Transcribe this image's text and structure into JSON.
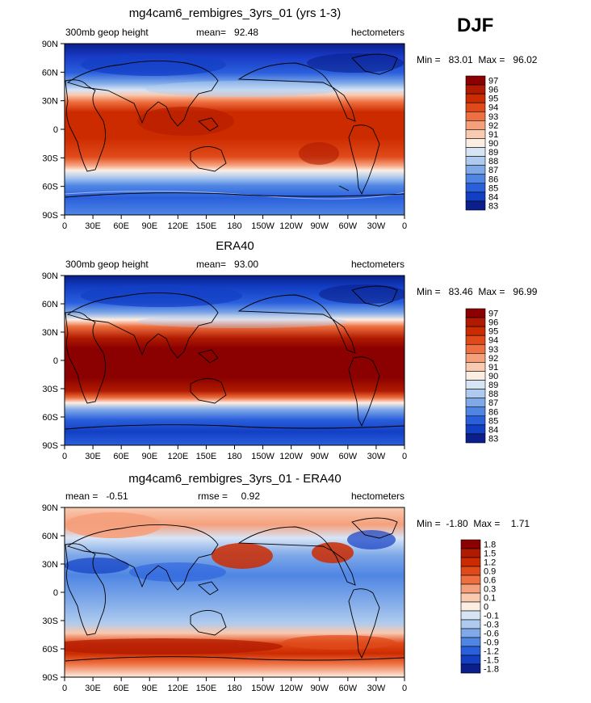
{
  "season_label": "DJF",
  "colors": {
    "continents": "#000000",
    "frame": "#000000"
  },
  "x_ticks": [
    "0",
    "30E",
    "60E",
    "90E",
    "120E",
    "150E",
    "180",
    "150W",
    "120W",
    "90W",
    "60W",
    "30W",
    "0"
  ],
  "y_ticks": [
    "90N",
    "60N",
    "30N",
    "0",
    "30S",
    "60S",
    "90S"
  ],
  "chart_data": [
    {
      "type": "heatmap",
      "title": "mg4cam6_rembigres_3yrs_01 (yrs 1-3)",
      "left_label": "300mb geop height",
      "center_label": "mean=   92.48",
      "right_label": "hectometers",
      "minmax_label": "Min =   83.01  Max =   96.02",
      "x_range": [
        0,
        360
      ],
      "y_range": [
        -90,
        90
      ],
      "color_levels": [
        "97",
        "96",
        "95",
        "94",
        "93",
        "92",
        "91",
        "90",
        "89",
        "88",
        "87",
        "86",
        "85",
        "84",
        "83"
      ],
      "colors": [
        "#8b0000",
        "#b01a00",
        "#cc2b00",
        "#e04a1a",
        "#ee7040",
        "#f5a07c",
        "#f9c9b0",
        "#fdeee4",
        "#d7e4f6",
        "#aecbef",
        "#7fa9e8",
        "#4f86e4",
        "#2a5fdc",
        "#123fc4",
        "#0a1f8c"
      ],
      "field": {
        "mean": 92.48,
        "min": 83.01,
        "max": 96.02
      }
    },
    {
      "type": "heatmap",
      "title": "ERA40",
      "left_label": "300mb geop height",
      "center_label": "mean=   93.00",
      "right_label": "hectometers",
      "minmax_label": "Min =   83.46  Max =   96.99",
      "x_range": [
        0,
        360
      ],
      "y_range": [
        -90,
        90
      ],
      "color_levels": [
        "97",
        "96",
        "95",
        "94",
        "93",
        "92",
        "91",
        "90",
        "89",
        "88",
        "87",
        "86",
        "85",
        "84",
        "83"
      ],
      "colors": [
        "#8b0000",
        "#b01a00",
        "#cc2b00",
        "#e04a1a",
        "#ee7040",
        "#f5a07c",
        "#f9c9b0",
        "#fdeee4",
        "#d7e4f6",
        "#aecbef",
        "#7fa9e8",
        "#4f86e4",
        "#2a5fdc",
        "#123fc4",
        "#0a1f8c"
      ],
      "field": {
        "mean": 93.0,
        "min": 83.46,
        "max": 96.99
      }
    },
    {
      "type": "heatmap",
      "title": "mg4cam6_rembigres_3yrs_01 - ERA40",
      "left_label": "mean =   -0.51",
      "center_label": "rmse =     0.92",
      "right_label": "hectometers",
      "minmax_label": "Min =  -1.80  Max =    1.71",
      "x_range": [
        0,
        360
      ],
      "y_range": [
        -90,
        90
      ],
      "color_levels": [
        "1.8",
        "1.5",
        "1.2",
        "0.9",
        "0.6",
        "0.3",
        "0.1",
        "0",
        "-0.1",
        "-0.3",
        "-0.6",
        "-0.9",
        "-1.2",
        "-1.5",
        "-1.8"
      ],
      "colors": [
        "#8b0000",
        "#b01a00",
        "#cc2b00",
        "#e04a1a",
        "#ee7040",
        "#f5a07c",
        "#f9c9b0",
        "#fdeee4",
        "#d7e4f6",
        "#aecbef",
        "#7fa9e8",
        "#4f86e4",
        "#2a5fdc",
        "#123fc4",
        "#0a1f8c"
      ],
      "field": {
        "mean": -0.51,
        "rmse": 0.92,
        "min": -1.8,
        "max": 1.71
      }
    }
  ]
}
